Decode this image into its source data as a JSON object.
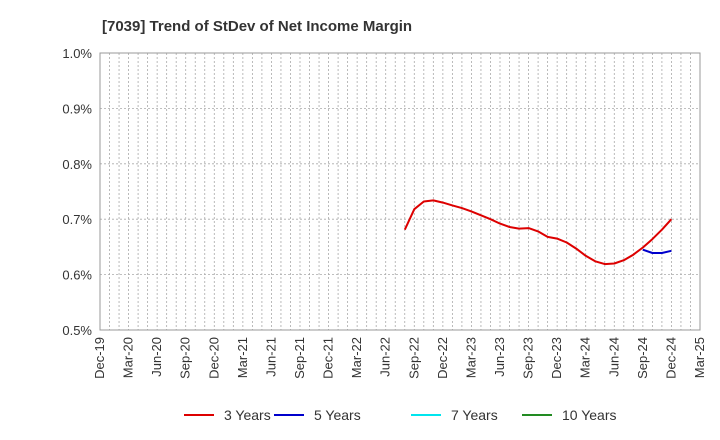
{
  "chart_data": {
    "type": "line",
    "title": "[7039]  Trend of StDev of Net Income Margin",
    "xlabel": "",
    "ylabel": "",
    "ylim": [
      0.5,
      1.0
    ],
    "y_ticks": [
      "0.5%",
      "0.6%",
      "0.7%",
      "0.8%",
      "0.9%",
      "1.0%"
    ],
    "x_ticks": [
      "Dec-19",
      "Mar-20",
      "Jun-20",
      "Sep-20",
      "Dec-20",
      "Mar-21",
      "Jun-21",
      "Sep-21",
      "Dec-21",
      "Mar-22",
      "Jun-22",
      "Sep-22",
      "Dec-22",
      "Mar-23",
      "Jun-23",
      "Sep-23",
      "Dec-23",
      "Mar-24",
      "Jun-24",
      "Sep-24",
      "Dec-24",
      "Mar-25"
    ],
    "grid": true,
    "legend_position": "bottom",
    "series": [
      {
        "name": "3 Years",
        "color": "#dd0000",
        "x": [
          "Aug-22",
          "Sep-22",
          "Oct-22",
          "Nov-22",
          "Dec-22",
          "Jan-23",
          "Feb-23",
          "Mar-23",
          "Apr-23",
          "May-23",
          "Jun-23",
          "Jul-23",
          "Aug-23",
          "Sep-23",
          "Oct-23",
          "Nov-23",
          "Dec-23",
          "Jan-24",
          "Feb-24",
          "Mar-24",
          "Apr-24",
          "May-24",
          "Jun-24",
          "Jul-24",
          "Aug-24",
          "Sep-24",
          "Oct-24",
          "Nov-24",
          "Dec-24"
        ],
        "values": [
          0.681,
          0.718,
          0.732,
          0.734,
          0.73,
          0.725,
          0.72,
          0.714,
          0.707,
          0.7,
          0.692,
          0.686,
          0.683,
          0.684,
          0.678,
          0.668,
          0.665,
          0.658,
          0.647,
          0.634,
          0.624,
          0.619,
          0.62,
          0.626,
          0.636,
          0.649,
          0.664,
          0.681,
          0.7
        ]
      },
      {
        "name": "5 Years",
        "color": "#0000cc",
        "x": [
          "Sep-24",
          "Oct-24",
          "Nov-24",
          "Dec-24"
        ],
        "values": [
          0.645,
          0.639,
          0.639,
          0.643
        ]
      },
      {
        "name": "7 Years",
        "color": "#00e5ee",
        "x": [],
        "values": []
      },
      {
        "name": "10 Years",
        "color": "#228b22",
        "x": [],
        "values": []
      }
    ]
  }
}
